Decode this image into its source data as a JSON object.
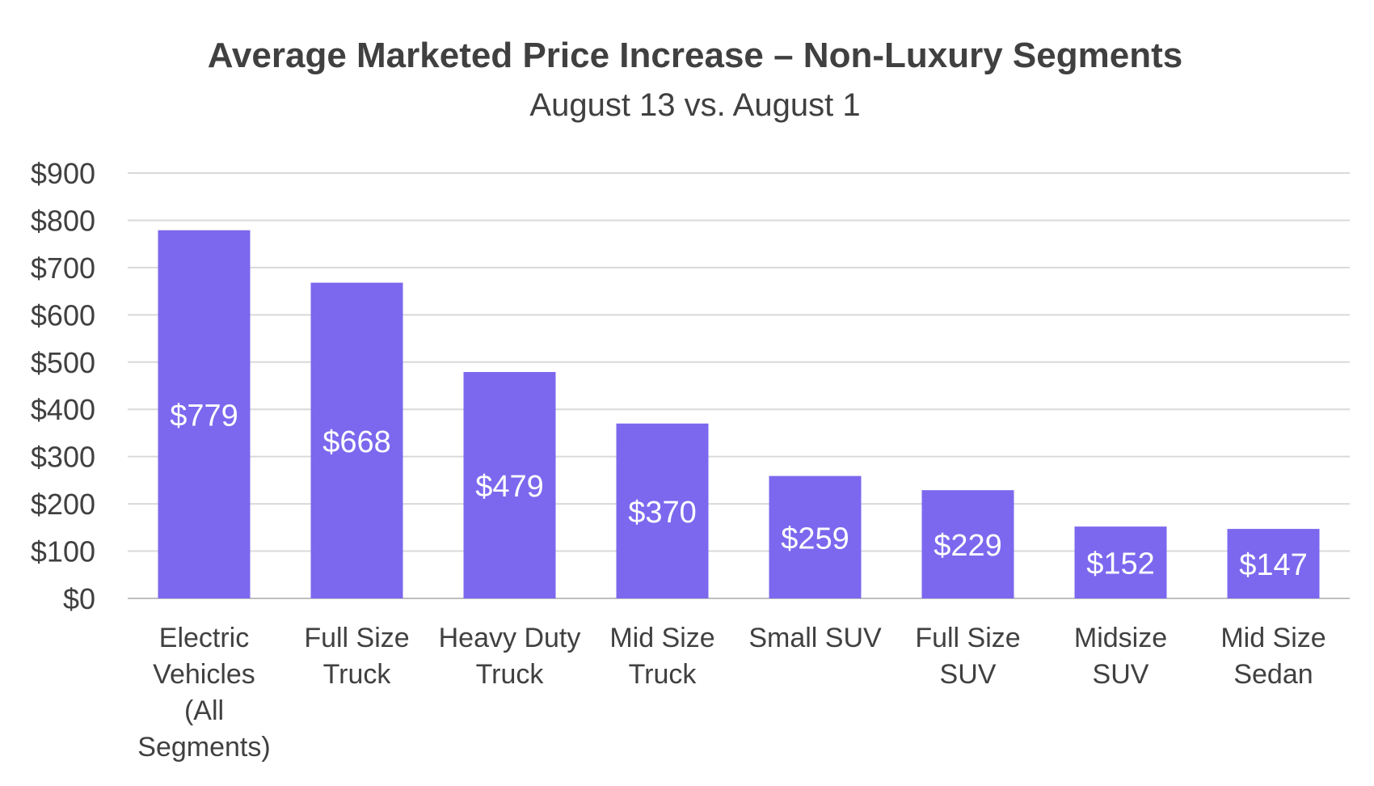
{
  "chart_data": {
    "type": "bar",
    "title": "Average Marketed Price Increase – Non-Luxury Segments",
    "subtitle": "August 13 vs. August 1",
    "xlabel": "",
    "ylabel": "",
    "ylim": [
      0,
      900
    ],
    "yticks": [
      "$0",
      "$100",
      "$200",
      "$300",
      "$400",
      "$500",
      "$600",
      "$700",
      "$800",
      "$900"
    ],
    "ytick_values": [
      0,
      100,
      200,
      300,
      400,
      500,
      600,
      700,
      800,
      900
    ],
    "categories": [
      [
        "Electric",
        "Vehicles",
        "(All",
        "Segments)"
      ],
      [
        "Full Size",
        "Truck"
      ],
      [
        "Heavy Duty",
        "Truck"
      ],
      [
        "Mid Size",
        "Truck"
      ],
      [
        "Small SUV"
      ],
      [
        "Full Size",
        "SUV"
      ],
      [
        "Midsize",
        "SUV"
      ],
      [
        "Mid Size",
        "Sedan"
      ]
    ],
    "values": [
      779,
      668,
      479,
      370,
      259,
      229,
      152,
      147
    ],
    "data_labels": [
      "$779",
      "$668",
      "$479",
      "$370",
      "$259",
      "$229",
      "$152",
      "$147"
    ],
    "grid": true,
    "legend": "none",
    "colors": {
      "bar": "#7B68EE",
      "grid": "#d9d9d9",
      "axis_line": "#bfbfbf",
      "text": "#404040",
      "data_label": "#ffffff"
    }
  }
}
